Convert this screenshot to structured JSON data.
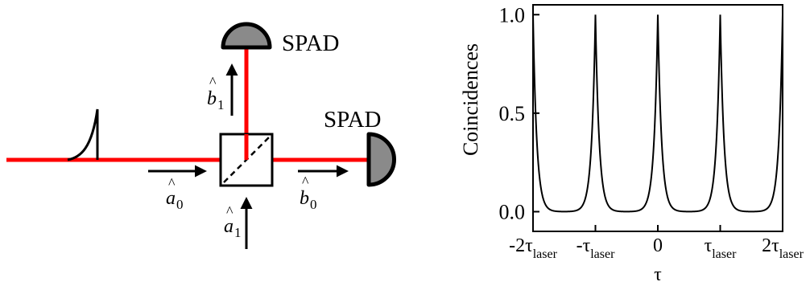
{
  "diagram": {
    "detectors": [
      {
        "label": "SPAD"
      },
      {
        "label": "SPAD"
      }
    ],
    "modes": {
      "a0": {
        "base": "a",
        "sub": "0"
      },
      "a1": {
        "base": "a",
        "sub": "1"
      },
      "b0": {
        "base": "b",
        "sub": "0"
      },
      "b1": {
        "base": "b",
        "sub": "1"
      }
    },
    "colors": {
      "beam": "#ff0000",
      "detector_fill": "#8a8a8a",
      "stroke": "#000000"
    }
  },
  "chart_data": {
    "type": "line",
    "title": "",
    "xlabel": "τ",
    "ylabel": "Coincidences",
    "xlim": [
      -2,
      2
    ],
    "ylim": [
      -0.1,
      1.05
    ],
    "yticks": [
      {
        "value": 0.0,
        "label": "0.0"
      },
      {
        "value": 0.5,
        "label": "0.5"
      },
      {
        "value": 1.0,
        "label": "1.0"
      }
    ],
    "xticks": [
      {
        "value": -2,
        "pre": "-2τ",
        "sub": "laser"
      },
      {
        "value": -1,
        "pre": "-τ",
        "sub": "laser"
      },
      {
        "value": 0,
        "pre": "0",
        "sub": ""
      },
      {
        "value": 1,
        "pre": "τ",
        "sub": "laser"
      },
      {
        "value": 2,
        "pre": "2τ",
        "sub": "laser"
      }
    ],
    "peaks": [
      -2,
      -1,
      0,
      1,
      2
    ],
    "peak_height": 1.0,
    "baseline": 0.0,
    "decay_width": 0.06,
    "grid": false
  }
}
